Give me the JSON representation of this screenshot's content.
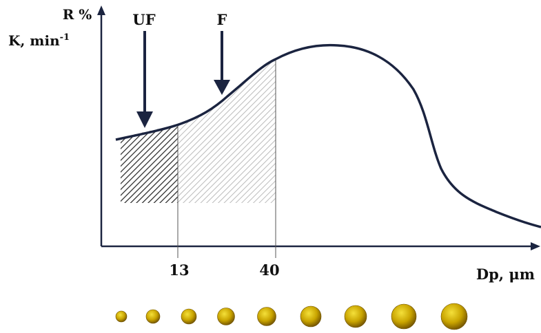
{
  "axes": {
    "y_label_line1": "R %",
    "y_label_line2": {
      "text": "K, min",
      "superscript": "-1"
    },
    "x_label": "Dp, μm"
  },
  "arrows": [
    {
      "label": "UF"
    },
    {
      "label": "F"
    }
  ],
  "x_marks": [
    "13",
    "40"
  ]
}
